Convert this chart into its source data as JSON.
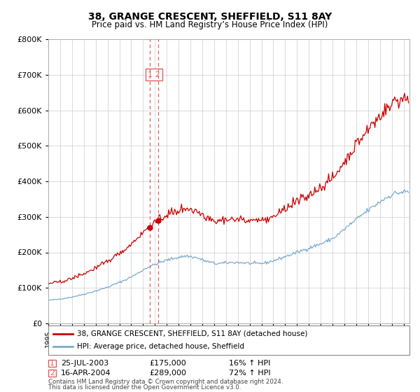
{
  "title": "38, GRANGE CRESCENT, SHEFFIELD, S11 8AY",
  "subtitle": "Price paid vs. HM Land Registry’s House Price Index (HPI)",
  "legend_line1": "38, GRANGE CRESCENT, SHEFFIELD, S11 8AY (detached house)",
  "legend_line2": "HPI: Average price, detached house, Sheffield",
  "sale1_date": "25-JUL-2003",
  "sale1_price": "£175,000",
  "sale1_hpi": "16% ↑ HPI",
  "sale1_year": 2003.56,
  "sale1_value": 175000,
  "sale2_date": "16-APR-2004",
  "sale2_price": "£289,000",
  "sale2_hpi": "72% ↑ HPI",
  "sale2_year": 2004.29,
  "sale2_value": 289000,
  "footnote1": "Contains HM Land Registry data © Crown copyright and database right 2024.",
  "footnote2": "This data is licensed under the Open Government Licence v3.0.",
  "red_color": "#cc0000",
  "blue_color": "#7aabcf",
  "dashed_color": "#e06060",
  "ylim_min": 0,
  "ylim_max": 800000,
  "xlim_min": 1995.0,
  "xlim_max": 2025.5
}
